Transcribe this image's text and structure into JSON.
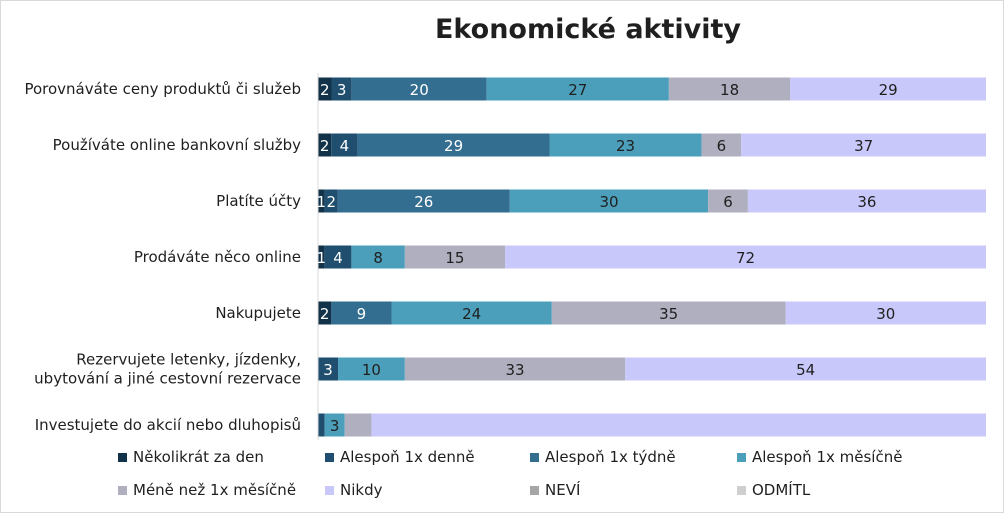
{
  "chart_data": {
    "type": "bar",
    "orientation": "horizontal",
    "stacked": true,
    "normalized": true,
    "title": "Ekonomické aktivity",
    "xlabel": "",
    "ylabel": "",
    "grid": false,
    "legend_position": "bottom",
    "categories": [
      "Porovnáváte ceny produktů či služeb",
      "Používáte online bankovní služby",
      "Platíte účty",
      "Prodáváte něco online",
      "Nakupujete",
      "Rezervujete letenky, jízdenky, ubytování a jiné cestovní rezervace",
      "Investujete do akcií nebo dluhopisů"
    ],
    "category_lines": [
      [
        "Porovnáváte ceny produktů či služeb"
      ],
      [
        "Používáte online bankovní služby"
      ],
      [
        "Platíte účty"
      ],
      [
        "Prodáváte něco online"
      ],
      [
        "Nakupujete"
      ],
      [
        "Rezervujete letenky, jízdenky,",
        "ubytování a jiné cestovní rezervace"
      ],
      [
        "Investujete do akcií nebo dluhopisů"
      ]
    ],
    "series": [
      {
        "name": "Několikrát za den",
        "color": "#12324a",
        "values": [
          2,
          2,
          1,
          1,
          2,
          0,
          0
        ],
        "labels": [
          "2",
          "2",
          "1",
          "1",
          "2",
          "",
          ""
        ]
      },
      {
        "name": "Alespoň 1x denně",
        "color": "#1f4e6e",
        "values": [
          3,
          4,
          2,
          4,
          0,
          3,
          1
        ],
        "labels": [
          "3",
          "4",
          "2",
          "4",
          "",
          "3",
          ""
        ]
      },
      {
        "name": "Alespoň 1x týdně",
        "color": "#336d8f",
        "values": [
          20,
          29,
          26,
          0,
          9,
          0,
          0
        ],
        "labels": [
          "20",
          "29",
          "26",
          "",
          "9",
          "",
          ""
        ]
      },
      {
        "name": "Alespoň 1x měsíčně",
        "color": "#4c9fba",
        "values": [
          27,
          23,
          30,
          8,
          24,
          10,
          3
        ],
        "labels": [
          "27",
          "23",
          "30",
          "8",
          "24",
          "10",
          "3"
        ]
      },
      {
        "name": "Méně než 1x měsíčně",
        "color": "#b0afbf",
        "values": [
          18,
          6,
          6,
          15,
          35,
          33,
          4
        ],
        "labels": [
          "18",
          "6",
          "6",
          "15",
          "35",
          "33",
          ""
        ]
      },
      {
        "name": "Nikdy",
        "color": "#c9c8fb",
        "values": [
          29,
          37,
          36,
          72,
          30,
          54,
          92
        ],
        "labels": [
          "29",
          "37",
          "36",
          "72",
          "30",
          "54",
          ""
        ]
      },
      {
        "name": "NEVÍ",
        "color": "#a6a6a6",
        "values": [
          0,
          0,
          0,
          0,
          0,
          0,
          0
        ],
        "labels": [
          "",
          "",
          "",
          "",
          "",
          "",
          ""
        ]
      },
      {
        "name": "ODMÍTL",
        "color": "#cfcfcf",
        "values": [
          0,
          0,
          0,
          0,
          0,
          0,
          0
        ],
        "labels": [
          "",
          "",
          "",
          "",
          "",
          "",
          ""
        ]
      }
    ]
  }
}
